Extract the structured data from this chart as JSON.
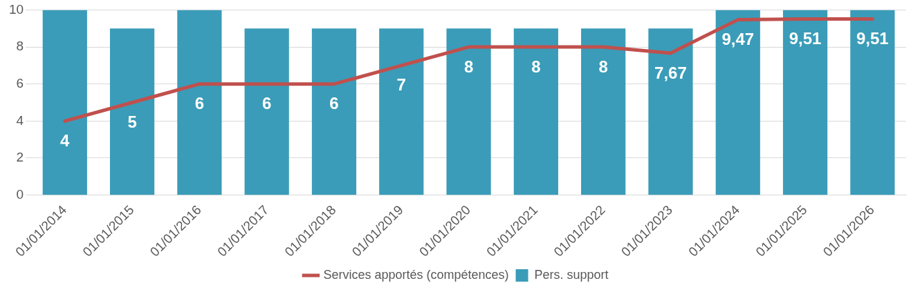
{
  "chart_data": {
    "type": "bar",
    "categories": [
      "01/01/2014",
      "01/01/2015",
      "01/01/2016",
      "01/01/2017",
      "01/01/2018",
      "01/01/2019",
      "01/01/2020",
      "01/01/2021",
      "01/01/2022",
      "01/01/2023",
      "01/01/2024",
      "01/01/2025",
      "01/01/2026"
    ],
    "series": [
      {
        "name": "Pers. support",
        "color": "#3a9cb8",
        "values": [
          10,
          9,
          10,
          9,
          9,
          9,
          9,
          9,
          9,
          9,
          10,
          10,
          10
        ]
      },
      {
        "name": "Services apportés (compétences)",
        "type": "line",
        "color": "#c0504d",
        "values": [
          4,
          5,
          6,
          6,
          6,
          7,
          8,
          8,
          8,
          7.67,
          9.47,
          9.51,
          9.51
        ],
        "value_labels": [
          "4",
          "5",
          "6",
          "6",
          "6",
          "7",
          "8",
          "8",
          "8",
          "7,67",
          "9,47",
          "9,51",
          "9,51"
        ]
      }
    ],
    "ylim": [
      0,
      10
    ],
    "yticks": [
      0,
      2,
      4,
      6,
      8,
      10
    ],
    "grid": "y",
    "legend": "bottom",
    "marker": "none",
    "line_style": "solid"
  }
}
